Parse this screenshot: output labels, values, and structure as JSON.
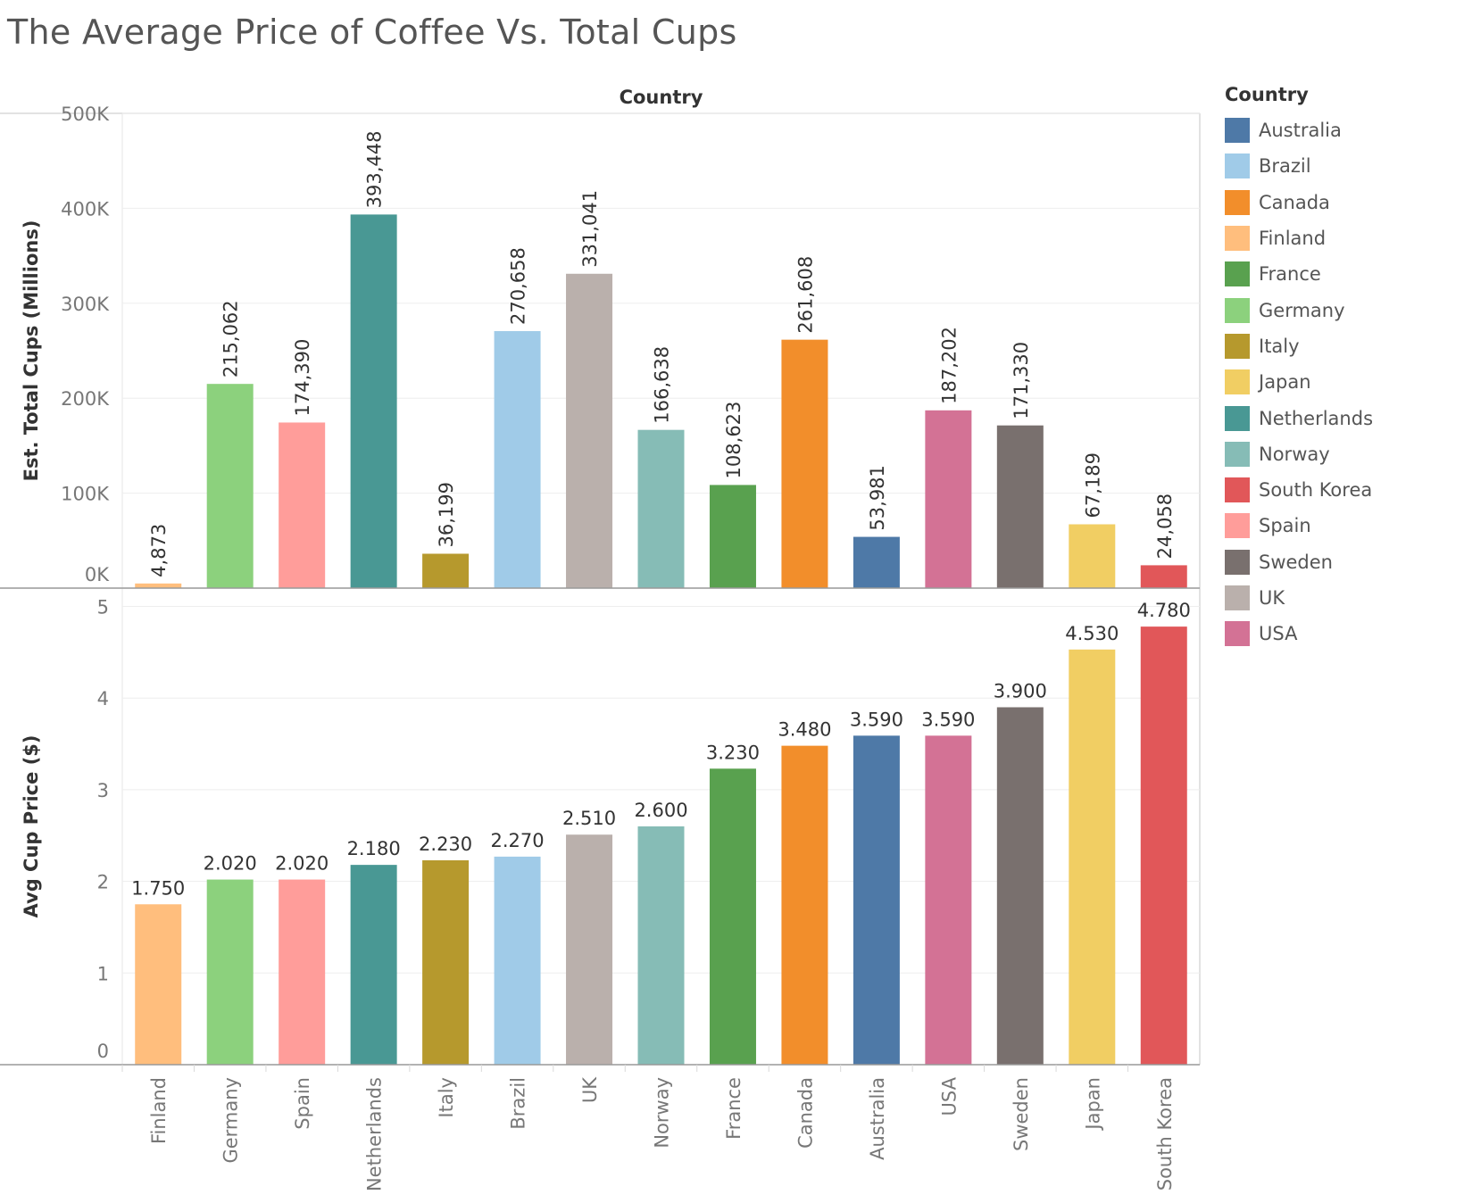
{
  "chart_data": {
    "title": "The Average Price of Coffee Vs. Total Cups",
    "type": "bar",
    "column_header": "Country",
    "categories": [
      "Finland",
      "Germany",
      "Spain",
      "Netherlands",
      "Italy",
      "Brazil",
      "UK",
      "Norway",
      "France",
      "Canada",
      "Australia",
      "USA",
      "Sweden",
      "Japan",
      "South Korea"
    ],
    "panels": [
      {
        "ylabel": "Est. Total Cups (Millions)",
        "ylim": [
          0,
          500000
        ],
        "yticks": [
          0,
          100000,
          200000,
          300000,
          400000,
          500000
        ],
        "ytick_labels": [
          "0K",
          "100K",
          "200K",
          "300K",
          "400K",
          "500K"
        ],
        "values": [
          4873,
          215062,
          174390,
          393448,
          36199,
          270658,
          331041,
          166638,
          108623,
          261608,
          53981,
          187202,
          171330,
          67189,
          24058
        ],
        "data_labels": [
          "4,873",
          "215,062",
          "174,390",
          "393,448",
          "36,199",
          "270,658",
          "331,041",
          "166,638",
          "108,623",
          "261,608",
          "53,981",
          "187,202",
          "171,330",
          "67,189",
          "24,058"
        ],
        "data_label_orientation": "vertical"
      },
      {
        "ylabel": "Avg Cup Price ($)",
        "ylim": [
          0,
          5.2
        ],
        "yticks": [
          0,
          1,
          2,
          3,
          4,
          5
        ],
        "ytick_labels": [
          "0",
          "1",
          "2",
          "3",
          "4",
          "5"
        ],
        "values": [
          1.75,
          2.02,
          2.02,
          2.18,
          2.23,
          2.27,
          2.51,
          2.6,
          3.23,
          3.48,
          3.59,
          3.59,
          3.9,
          4.53,
          4.78
        ],
        "data_labels": [
          "1.750",
          "2.020",
          "2.020",
          "2.180",
          "2.230",
          "2.270",
          "2.510",
          "2.600",
          "3.230",
          "3.480",
          "3.590",
          "3.590",
          "3.900",
          "4.530",
          "4.780"
        ],
        "data_label_orientation": "horizontal"
      }
    ],
    "grid": true,
    "legend_position": "right",
    "legend": {
      "title": "Country",
      "items": [
        {
          "name": "Australia",
          "color": "#4e79a7"
        },
        {
          "name": "Brazil",
          "color": "#a0cbe8"
        },
        {
          "name": "Canada",
          "color": "#f28e2b"
        },
        {
          "name": "Finland",
          "color": "#ffbe7d"
        },
        {
          "name": "France",
          "color": "#59a14f"
        },
        {
          "name": "Germany",
          "color": "#8cd17d"
        },
        {
          "name": "Italy",
          "color": "#b6992d"
        },
        {
          "name": "Japan",
          "color": "#f1ce63"
        },
        {
          "name": "Netherlands",
          "color": "#499894"
        },
        {
          "name": "Norway",
          "color": "#86bcb6"
        },
        {
          "name": "South Korea",
          "color": "#e15759"
        },
        {
          "name": "Spain",
          "color": "#ff9d9a"
        },
        {
          "name": "Sweden",
          "color": "#79706e"
        },
        {
          "name": "UK",
          "color": "#bab0ac"
        },
        {
          "name": "USA",
          "color": "#d37295"
        }
      ]
    }
  }
}
